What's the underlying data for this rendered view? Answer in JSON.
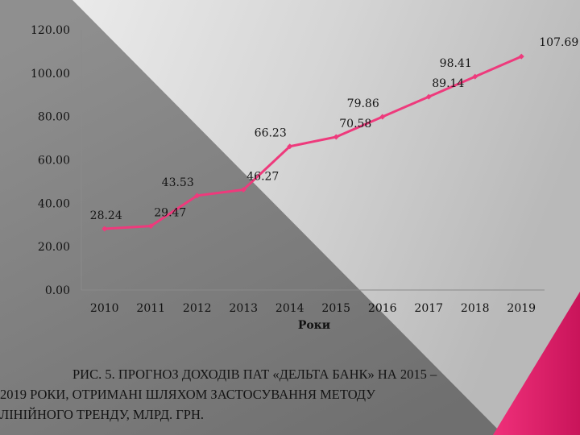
{
  "chart_data": {
    "type": "line",
    "x": [
      "2010",
      "2011",
      "2012",
      "2013",
      "2014",
      "2015",
      "2016",
      "2017",
      "2018",
      "2019"
    ],
    "values": [
      28.24,
      29.47,
      43.53,
      46.27,
      66.23,
      70.58,
      79.86,
      89.14,
      98.41,
      107.69
    ],
    "value_labels": [
      "28.24",
      "29.47",
      "43.53",
      "46.27",
      "66.23",
      "70.58",
      "79.86",
      "89.14",
      "98.41",
      "107.69"
    ],
    "ylim": [
      0,
      120
    ],
    "y_ticks": [
      "0.00",
      "20.00",
      "40.00",
      "60.00",
      "80.00",
      "100.00",
      "120.00"
    ],
    "xlabel": "Роки",
    "ylabel": "",
    "title": "",
    "grid": false,
    "legend": "none",
    "line_color": "#ee3a7c"
  },
  "caption": {
    "line1": "РИС. 5. ПРОГНОЗ ДОХОДІВ ПАТ «ДЕЛЬТА БАНК» НА 2015 –",
    "line2": "2019 РОКИ, ОТРИМАНІ ШЛЯХОМ ЗАСТОСУВАННЯ МЕТОДУ",
    "line3": "ЛІНІЙНОГО ТРЕНДУ, МЛРД. ГРН."
  },
  "colors": {
    "background_light": "#d9d9d9",
    "background_dark": "#8a8a8a",
    "accent": "#e4226b"
  }
}
